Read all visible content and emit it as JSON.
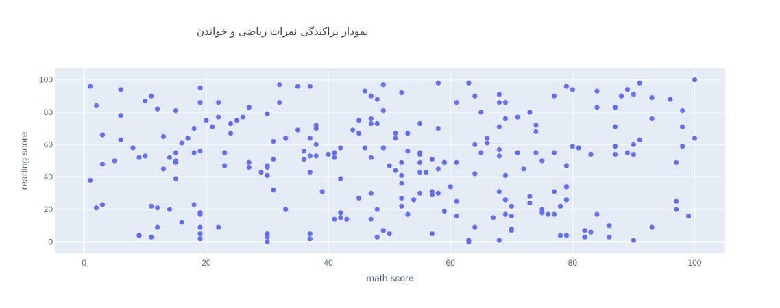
{
  "chart_data": {
    "type": "scatter",
    "title": "نمودار پراکندگی نمرات ریاضی و خواندن",
    "xlabel": "math score",
    "ylabel": "reading score",
    "xlim": [
      -4.8,
      105
    ],
    "ylim": [
      -7,
      107
    ],
    "xticks": [
      "0",
      "20",
      "40",
      "60",
      "80",
      "100"
    ],
    "yticks": [
      "0",
      "20",
      "40",
      "60",
      "80",
      "100"
    ],
    "grid": true,
    "legend": "none",
    "colors": {
      "background": "#e5ecf6",
      "marker": "#636efa"
    },
    "points": [
      [
        1,
        96
      ],
      [
        1,
        38
      ],
      [
        2,
        84
      ],
      [
        2,
        21
      ],
      [
        3,
        66
      ],
      [
        3,
        48
      ],
      [
        3,
        23
      ],
      [
        5,
        50
      ],
      [
        6,
        94
      ],
      [
        6,
        78
      ],
      [
        6,
        63
      ],
      [
        8,
        58
      ],
      [
        9,
        52
      ],
      [
        9,
        4
      ],
      [
        10,
        87
      ],
      [
        10,
        53
      ],
      [
        11,
        90
      ],
      [
        11,
        22
      ],
      [
        11,
        3
      ],
      [
        12,
        82
      ],
      [
        12,
        21
      ],
      [
        12,
        9
      ],
      [
        13,
        65
      ],
      [
        13,
        45
      ],
      [
        14,
        52
      ],
      [
        14,
        20
      ],
      [
        15,
        81
      ],
      [
        15,
        55
      ],
      [
        15,
        50
      ],
      [
        15,
        49
      ],
      [
        15,
        39
      ],
      [
        16,
        61
      ],
      [
        16,
        12
      ],
      [
        17,
        64
      ],
      [
        18,
        70
      ],
      [
        18,
        55
      ],
      [
        18,
        23
      ],
      [
        19,
        95
      ],
      [
        19,
        86
      ],
      [
        19,
        56
      ],
      [
        19,
        18
      ],
      [
        19,
        17
      ],
      [
        19,
        9
      ],
      [
        19,
        5
      ],
      [
        19,
        2
      ],
      [
        20,
        75
      ],
      [
        21,
        71
      ],
      [
        22,
        86
      ],
      [
        22,
        77
      ],
      [
        22,
        9
      ],
      [
        23,
        55
      ],
      [
        23,
        47
      ],
      [
        24,
        73
      ],
      [
        24,
        67
      ],
      [
        25,
        75
      ],
      [
        26,
        77
      ],
      [
        27,
        83
      ],
      [
        27,
        49
      ],
      [
        27,
        46
      ],
      [
        29,
        43
      ],
      [
        30,
        79
      ],
      [
        30,
        47
      ],
      [
        30,
        46
      ],
      [
        30,
        41
      ],
      [
        30,
        5
      ],
      [
        30,
        3
      ],
      [
        30,
        0
      ],
      [
        31,
        62
      ],
      [
        31,
        51
      ],
      [
        31,
        32
      ],
      [
        32,
        97
      ],
      [
        32,
        86
      ],
      [
        33,
        64
      ],
      [
        33,
        20
      ],
      [
        35,
        96
      ],
      [
        35,
        69
      ],
      [
        36,
        56
      ],
      [
        36,
        51
      ],
      [
        37,
        96
      ],
      [
        37,
        64
      ],
      [
        37,
        53
      ],
      [
        37,
        43
      ],
      [
        37,
        5
      ],
      [
        37,
        2
      ],
      [
        38,
        72
      ],
      [
        38,
        70
      ],
      [
        38,
        60
      ],
      [
        38,
        53
      ],
      [
        39,
        31
      ],
      [
        40,
        54
      ],
      [
        41,
        55
      ],
      [
        41,
        52
      ],
      [
        41,
        14
      ],
      [
        42,
        58
      ],
      [
        42,
        39
      ],
      [
        42,
        18
      ],
      [
        42,
        15
      ],
      [
        43,
        14
      ],
      [
        44,
        69
      ],
      [
        45,
        75
      ],
      [
        45,
        67
      ],
      [
        45,
        27
      ],
      [
        46,
        93
      ],
      [
        46,
        58
      ],
      [
        47,
        90
      ],
      [
        47,
        76
      ],
      [
        47,
        73
      ],
      [
        47,
        52
      ],
      [
        47,
        30
      ],
      [
        47,
        14
      ],
      [
        48,
        88
      ],
      [
        48,
        73
      ],
      [
        48,
        20
      ],
      [
        48,
        3
      ],
      [
        49,
        97
      ],
      [
        49,
        81
      ],
      [
        49,
        58
      ],
      [
        49,
        7
      ],
      [
        50,
        47
      ],
      [
        50,
        5
      ],
      [
        51,
        67
      ],
      [
        51,
        64
      ],
      [
        51,
        44
      ],
      [
        52,
        92
      ],
      [
        52,
        49
      ],
      [
        52,
        41
      ],
      [
        52,
        36
      ],
      [
        52,
        27
      ],
      [
        52,
        22
      ],
      [
        53,
        67
      ],
      [
        53,
        56
      ],
      [
        53,
        17
      ],
      [
        54,
        26
      ],
      [
        55,
        73
      ],
      [
        55,
        55
      ],
      [
        55,
        54
      ],
      [
        55,
        49
      ],
      [
        55,
        43
      ],
      [
        55,
        30
      ],
      [
        56,
        43
      ],
      [
        57,
        51
      ],
      [
        57,
        31
      ],
      [
        57,
        29
      ],
      [
        57,
        5
      ],
      [
        58,
        98
      ],
      [
        58,
        70
      ],
      [
        58,
        45
      ],
      [
        58,
        30
      ],
      [
        59,
        49
      ],
      [
        59,
        19
      ],
      [
        60,
        34
      ],
      [
        61,
        86
      ],
      [
        61,
        49
      ],
      [
        61,
        25
      ],
      [
        61,
        16
      ],
      [
        63,
        98
      ],
      [
        63,
        1
      ],
      [
        63,
        0
      ],
      [
        64,
        90
      ],
      [
        64,
        60
      ],
      [
        64,
        42
      ],
      [
        64,
        9
      ],
      [
        65,
        80
      ],
      [
        65,
        55
      ],
      [
        66,
        64
      ],
      [
        66,
        61
      ],
      [
        67,
        15
      ],
      [
        68,
        91
      ],
      [
        68,
        86
      ],
      [
        68,
        71
      ],
      [
        68,
        57
      ],
      [
        68,
        53
      ],
      [
        68,
        31
      ],
      [
        68,
        1
      ],
      [
        69,
        86
      ],
      [
        69,
        76
      ],
      [
        69,
        41
      ],
      [
        69,
        26
      ],
      [
        69,
        17
      ],
      [
        70,
        22
      ],
      [
        70,
        16
      ],
      [
        70,
        8
      ],
      [
        70,
        7
      ],
      [
        71,
        77
      ],
      [
        71,
        55
      ],
      [
        72,
        45
      ],
      [
        73,
        80
      ],
      [
        73,
        28
      ],
      [
        73,
        24
      ],
      [
        74,
        72
      ],
      [
        74,
        68
      ],
      [
        74,
        55
      ],
      [
        75,
        50
      ],
      [
        75,
        20
      ],
      [
        75,
        18
      ],
      [
        76,
        17
      ],
      [
        77,
        90
      ],
      [
        77,
        55
      ],
      [
        77,
        31
      ],
      [
        77,
        17
      ],
      [
        78,
        22
      ],
      [
        78,
        4
      ],
      [
        79,
        96
      ],
      [
        79,
        47
      ],
      [
        79,
        34
      ],
      [
        79,
        26
      ],
      [
        79,
        4
      ],
      [
        80,
        94
      ],
      [
        80,
        59
      ],
      [
        81,
        58
      ],
      [
        82,
        7
      ],
      [
        82,
        3
      ],
      [
        83,
        54
      ],
      [
        83,
        6
      ],
      [
        84,
        93
      ],
      [
        84,
        83
      ],
      [
        84,
        17
      ],
      [
        86,
        10
      ],
      [
        86,
        3
      ],
      [
        87,
        83
      ],
      [
        87,
        71
      ],
      [
        87,
        59
      ],
      [
        87,
        54
      ],
      [
        88,
        90
      ],
      [
        89,
        94
      ],
      [
        89,
        55
      ],
      [
        90,
        91
      ],
      [
        90,
        60
      ],
      [
        90,
        54
      ],
      [
        90,
        1
      ],
      [
        91,
        98
      ],
      [
        91,
        63
      ],
      [
        93,
        89
      ],
      [
        93,
        76
      ],
      [
        93,
        9
      ],
      [
        96,
        88
      ],
      [
        97,
        49
      ],
      [
        97,
        25
      ],
      [
        97,
        20
      ],
      [
        98,
        81
      ],
      [
        98,
        71
      ],
      [
        98,
        59
      ],
      [
        99,
        16
      ],
      [
        100,
        100
      ],
      [
        100,
        64
      ]
    ]
  }
}
